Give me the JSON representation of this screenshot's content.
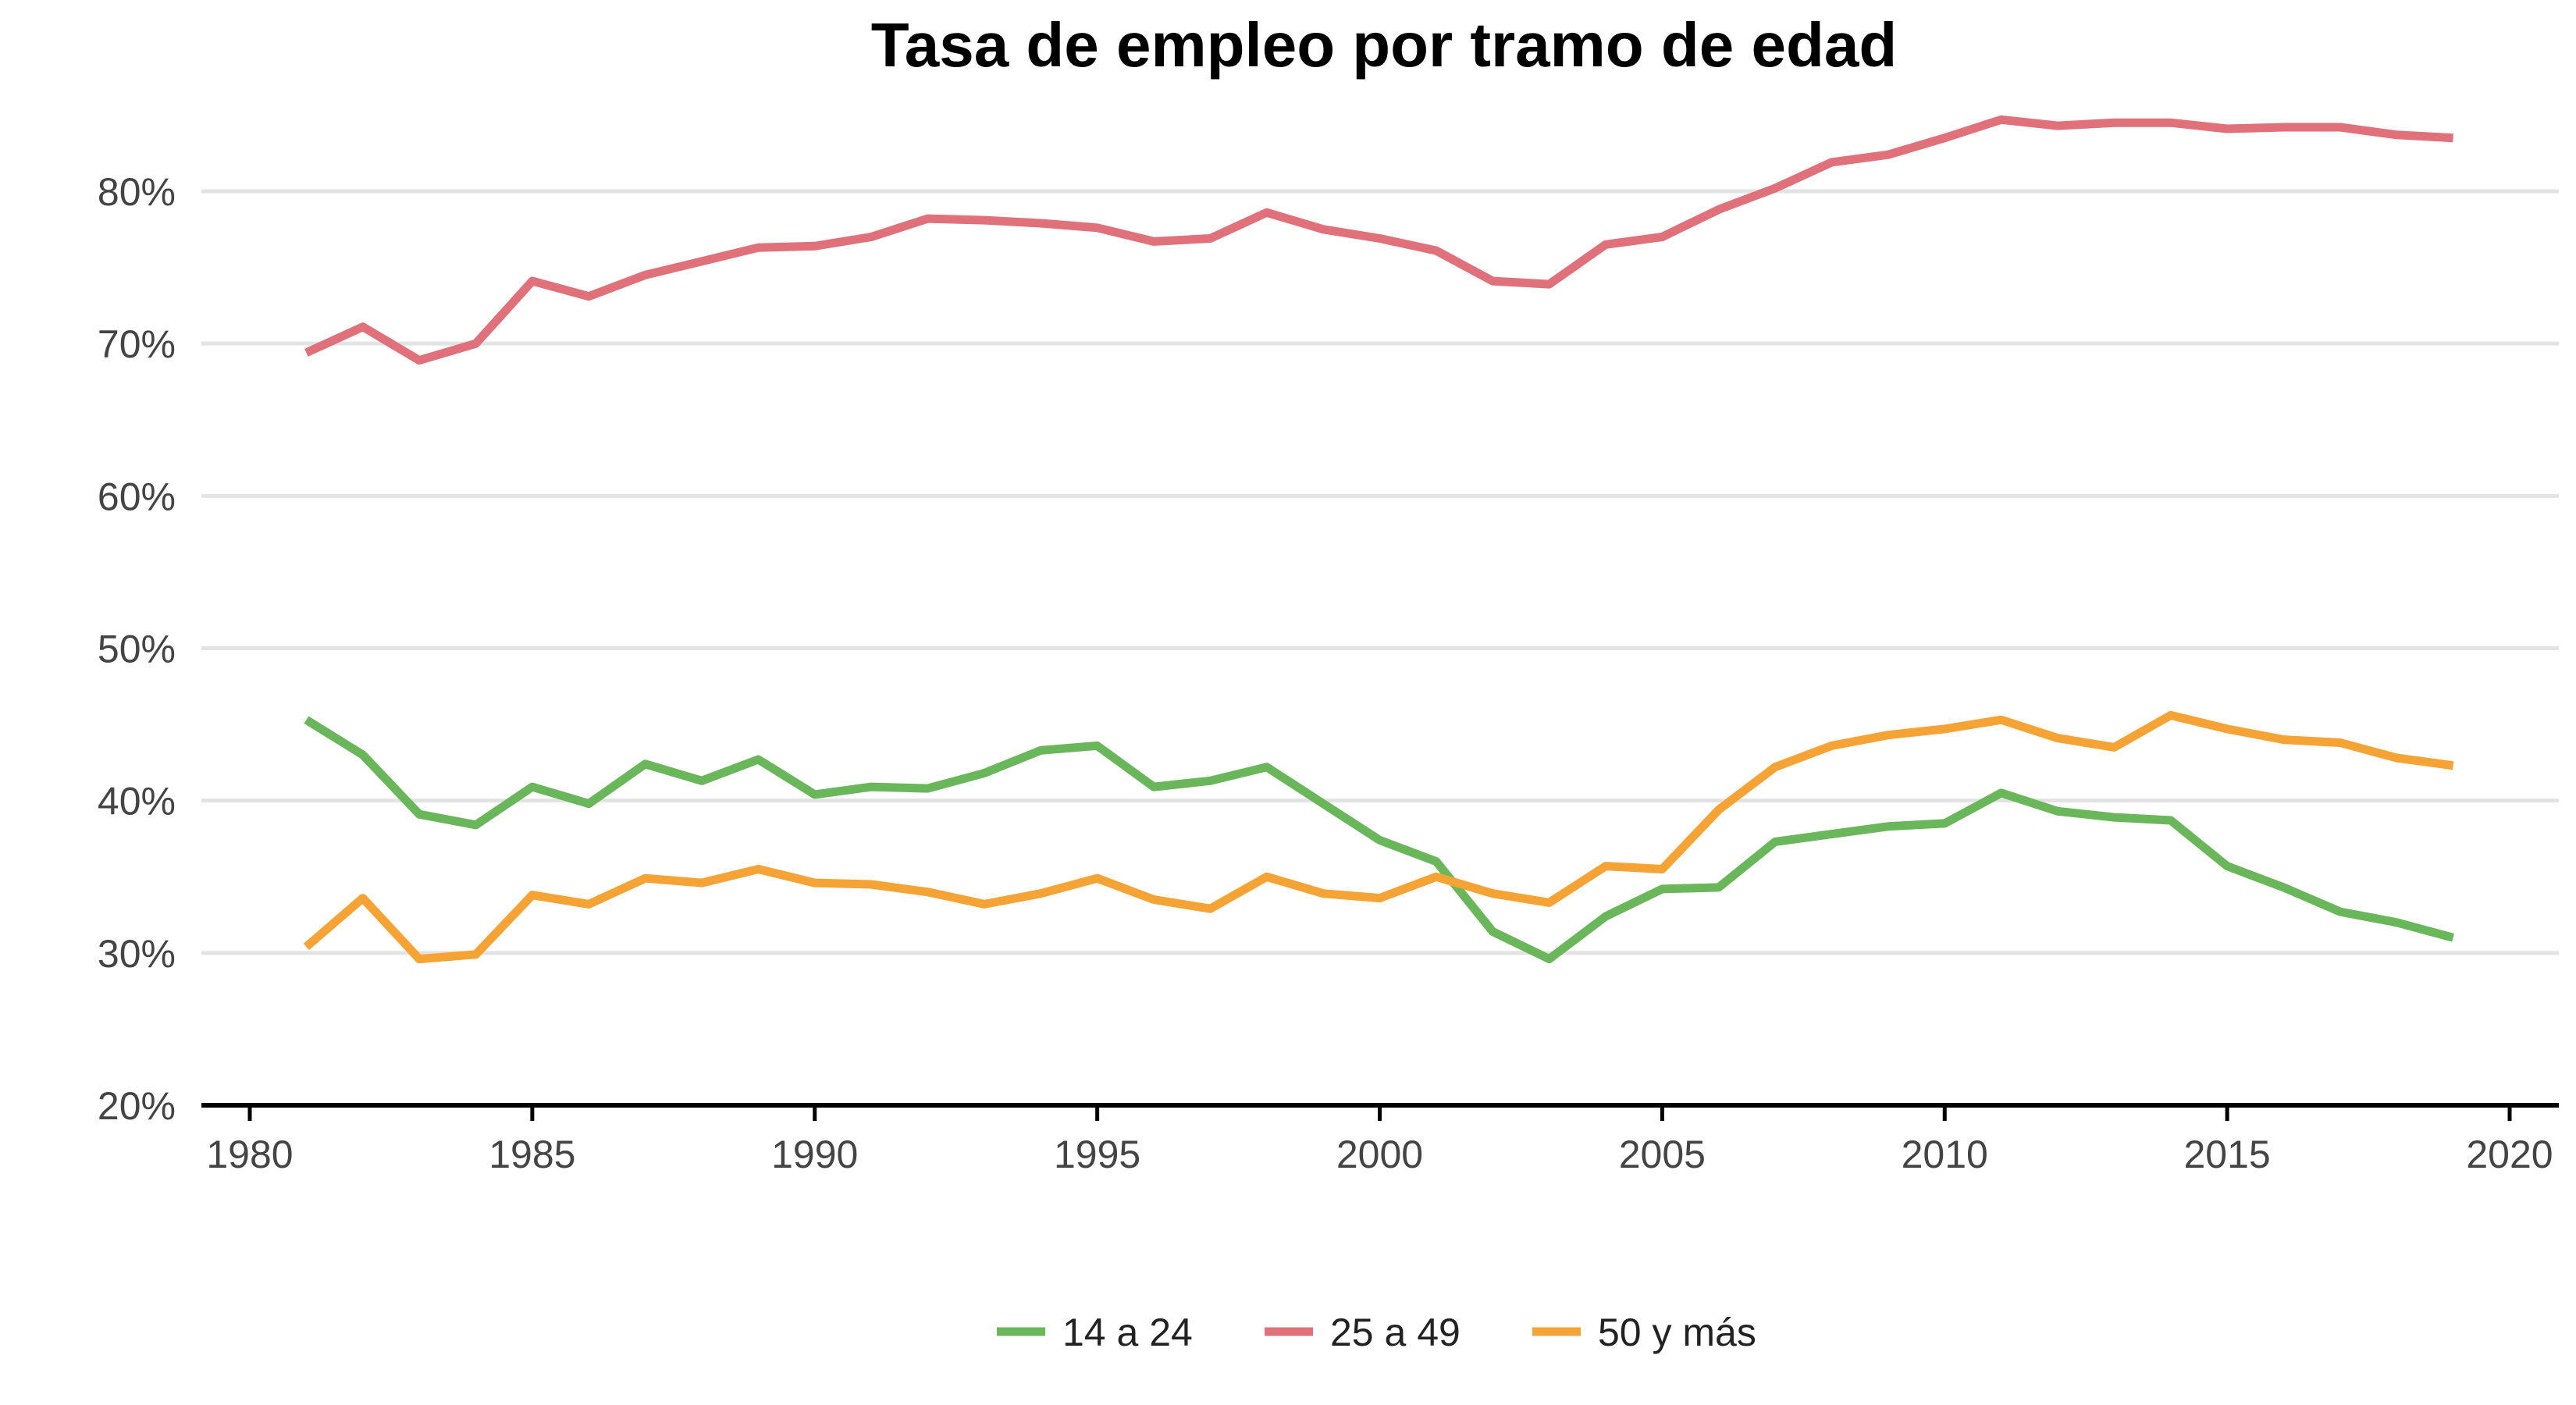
{
  "chart_data": {
    "type": "line",
    "title": "Tasa de empleo por tramo de edad",
    "xlabel": "",
    "ylabel": "",
    "xlim": [
      1978.5,
      2021
    ],
    "ylim": [
      20,
      86
    ],
    "x_ticks": [
      1980,
      1985,
      1990,
      1995,
      2000,
      2005,
      2010,
      2015,
      2020
    ],
    "y_ticks": [
      20,
      30,
      40,
      50,
      60,
      70,
      80
    ],
    "y_tick_labels": [
      "20%",
      "30%",
      "40%",
      "50%",
      "60%",
      "70%",
      "80%"
    ],
    "grid": "horizontal",
    "legend_position": "bottom",
    "x": [
      1981,
      1982,
      1983,
      1984,
      1985,
      1986,
      1987,
      1988,
      1989,
      1990,
      1991,
      1992,
      1993,
      1994,
      1995,
      1996,
      1997,
      1998,
      1999,
      2000,
      2001,
      2002,
      2003,
      2004,
      2005,
      2006,
      2007,
      2008,
      2009,
      2010,
      2011,
      2012,
      2013,
      2014,
      2015,
      2016,
      2017,
      2018,
      2019
    ],
    "series": [
      {
        "name": "14 a 24",
        "color": "#6ab65a",
        "values": [
          45.3,
          43.0,
          39.1,
          38.4,
          40.9,
          39.8,
          42.4,
          41.3,
          42.7,
          40.4,
          40.9,
          40.8,
          41.8,
          43.3,
          43.6,
          40.9,
          41.3,
          42.2,
          39.8,
          37.4,
          36.0,
          31.4,
          29.6,
          32.4,
          34.2,
          34.3,
          37.3,
          37.8,
          38.3,
          38.5,
          40.5,
          39.3,
          38.9,
          38.7,
          35.7,
          34.3,
          32.7,
          32.0,
          31.0
        ]
      },
      {
        "name": "25 a 49",
        "color": "#e0707a",
        "values": [
          69.4,
          71.1,
          68.9,
          70.0,
          74.1,
          73.1,
          74.5,
          75.4,
          76.3,
          76.4,
          77.0,
          78.2,
          78.1,
          77.9,
          77.6,
          76.7,
          76.9,
          78.6,
          77.5,
          76.9,
          76.1,
          74.1,
          73.9,
          76.5,
          77.0,
          78.8,
          80.2,
          81.9,
          82.4,
          83.5,
          84.7,
          84.3,
          84.5,
          84.5,
          84.1,
          84.2,
          84.2,
          83.7,
          83.5
        ]
      },
      {
        "name": "50 y más",
        "color": "#f5a334",
        "values": [
          30.4,
          33.6,
          29.6,
          29.9,
          33.8,
          33.2,
          34.9,
          34.6,
          35.5,
          34.6,
          34.5,
          34.0,
          33.2,
          33.9,
          34.9,
          33.5,
          32.9,
          35.0,
          33.9,
          33.6,
          35.0,
          33.9,
          33.3,
          35.7,
          35.5,
          39.4,
          42.2,
          43.6,
          44.3,
          44.7,
          45.3,
          44.1,
          43.5,
          45.6,
          44.7,
          44.0,
          43.8,
          42.8,
          42.3
        ]
      }
    ]
  }
}
